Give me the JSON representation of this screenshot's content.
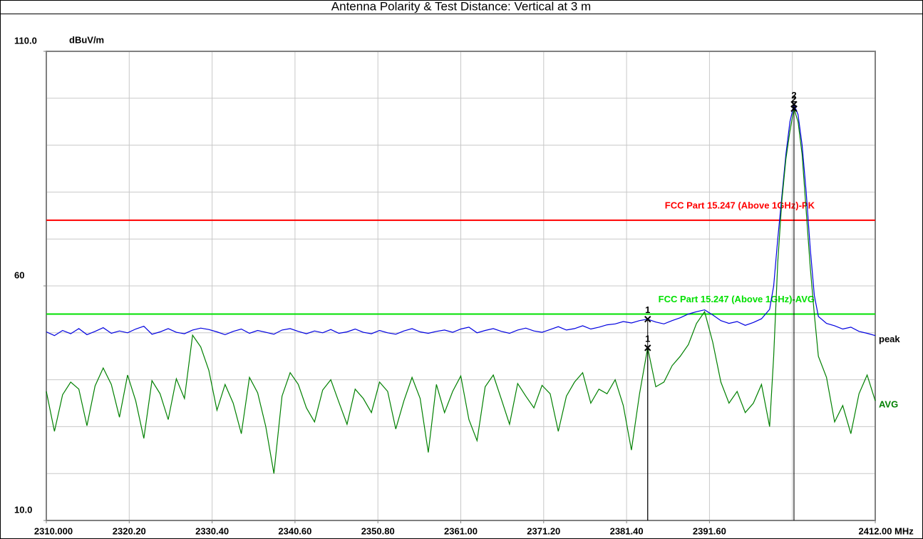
{
  "chart_data": {
    "type": "line",
    "title": "Antenna Polarity & Test Distance: Vertical at 3 m",
    "y_unit": "dBuV/m",
    "x_unit": "MHz",
    "xlim": [
      2310,
      2412
    ],
    "ylim": [
      10,
      110
    ],
    "xticks": [
      {
        "value": 2310,
        "label": "2310.000"
      },
      {
        "value": 2320.2,
        "label": "2320.20"
      },
      {
        "value": 2330.4,
        "label": "2330.40"
      },
      {
        "value": 2340.6,
        "label": "2340.60"
      },
      {
        "value": 2350.8,
        "label": "2350.80"
      },
      {
        "value": 2361,
        "label": "2361.00"
      },
      {
        "value": 2371.2,
        "label": "2371.20"
      },
      {
        "value": 2381.4,
        "label": "2381.40"
      },
      {
        "value": 2391.6,
        "label": "2391.60"
      },
      {
        "value": 2412,
        "label": "2412.00"
      }
    ],
    "xgrid": [
      2320.2,
      2330.4,
      2340.6,
      2350.8,
      2361,
      2371.2,
      2381.4,
      2391.6,
      2401.8
    ],
    "yticks": [
      {
        "value": 110,
        "label": "110.0"
      },
      60,
      {
        "value": 10,
        "label": "10.0"
      }
    ],
    "ygrid": [
      20,
      30,
      40,
      50,
      60,
      70,
      80,
      90,
      100
    ],
    "grid": true,
    "limits": [
      {
        "name": "FCC Part 15.247 (Above 1GHz)-PK",
        "color": "#ff0000",
        "value": 74
      },
      {
        "name": "FCC Part 15.247 (Above 1GHz)-AVG",
        "color": "#00e000",
        "value": 54
      }
    ],
    "x": [
      2310,
      2311,
      2312,
      2313,
      2314,
      2315,
      2316,
      2317,
      2318,
      2319,
      2320,
      2321,
      2322,
      2323,
      2324,
      2325,
      2326,
      2327,
      2328,
      2329,
      2330,
      2331,
      2332,
      2333,
      2334,
      2335,
      2336,
      2337,
      2338,
      2339,
      2340,
      2341,
      2342,
      2343,
      2344,
      2345,
      2346,
      2347,
      2348,
      2349,
      2350,
      2351,
      2352,
      2353,
      2354,
      2355,
      2356,
      2357,
      2358,
      2359,
      2360,
      2361,
      2362,
      2363,
      2364,
      2365,
      2366,
      2367,
      2368,
      2369,
      2370,
      2371,
      2372,
      2373,
      2374,
      2375,
      2376,
      2377,
      2378,
      2379,
      2380,
      2381,
      2382,
      2383,
      2384,
      2385,
      2386,
      2387,
      2388,
      2389,
      2390,
      2391,
      2392,
      2393,
      2394,
      2395,
      2396,
      2397,
      2398,
      2399,
      2399.5,
      2400,
      2400.5,
      2401,
      2401.5,
      2402,
      2402.5,
      2403,
      2403.5,
      2404,
      2404.5,
      2405,
      2406,
      2407,
      2408,
      2409,
      2410,
      2411,
      2412
    ],
    "series": [
      {
        "name": "peak",
        "color": "#0000e0",
        "values": [
          50.2,
          49.4,
          50.5,
          49.8,
          50.9,
          49.6,
          50.3,
          51.1,
          49.9,
          50.4,
          50.0,
          50.8,
          51.4,
          49.7,
          50.2,
          50.9,
          50.1,
          49.8,
          50.6,
          51.0,
          50.7,
          50.2,
          49.6,
          50.3,
          50.8,
          49.9,
          50.5,
          50.1,
          49.7,
          50.6,
          50.9,
          50.3,
          49.8,
          50.4,
          50.0,
          50.7,
          49.9,
          50.2,
          50.8,
          50.1,
          49.8,
          50.5,
          50.0,
          49.7,
          50.4,
          50.9,
          50.2,
          49.9,
          50.3,
          50.6,
          50.1,
          50.8,
          51.2,
          50.0,
          50.5,
          50.9,
          50.3,
          49.9,
          50.6,
          51.0,
          50.4,
          50.1,
          50.7,
          51.3,
          50.6,
          50.9,
          51.5,
          50.8,
          51.2,
          51.7,
          51.9,
          52.4,
          52.1,
          52.6,
          52.9,
          52.3,
          51.9,
          52.6,
          53.2,
          54.0,
          54.5,
          54.9,
          53.8,
          52.6,
          52.0,
          52.4,
          51.6,
          52.2,
          53.0,
          55.0,
          60,
          70,
          79,
          88,
          95,
          98.7,
          96.5,
          90,
          80,
          68,
          58,
          53.5,
          52.0,
          51.5,
          50.8,
          51.2,
          50.3,
          49.9,
          49.4
        ]
      },
      {
        "name": "AVG",
        "color": "#008000",
        "values": [
          37.5,
          29.0,
          36.8,
          39.5,
          38.0,
          30.2,
          38.7,
          42.5,
          39.0,
          32.0,
          41.0,
          35.5,
          27.5,
          39.8,
          37.0,
          31.5,
          40.2,
          36.0,
          49.5,
          47.0,
          42.0,
          33.5,
          39.0,
          35.0,
          28.5,
          40.5,
          37.2,
          30.0,
          20.0,
          36.5,
          41.5,
          39.0,
          34.0,
          31.0,
          37.8,
          40.0,
          35.2,
          30.5,
          38.0,
          36.0,
          33.0,
          39.5,
          37.5,
          29.5,
          35.5,
          40.5,
          36.0,
          24.5,
          39.0,
          33.0,
          37.5,
          40.8,
          31.5,
          27.0,
          38.5,
          41.0,
          35.8,
          30.5,
          39.2,
          36.5,
          34.0,
          38.8,
          37.0,
          29.0,
          36.5,
          39.5,
          41.5,
          35.0,
          38.0,
          37.0,
          40.0,
          34.5,
          25.0,
          37.0,
          46.8,
          38.5,
          39.5,
          43.0,
          45.0,
          47.5,
          52.0,
          54.5,
          48.0,
          39.5,
          35.0,
          37.5,
          33.0,
          35.0,
          39.0,
          30,
          45,
          65,
          78,
          87,
          93,
          97.8,
          95,
          88,
          76,
          64,
          54,
          45,
          40.5,
          31.0,
          34.5,
          28.5,
          37.0,
          41.0,
          35.5
        ]
      }
    ],
    "markers": [
      {
        "label": "1",
        "x": 2384,
        "y": 52.9
      },
      {
        "label": "1",
        "x": 2384,
        "y": 46.8
      },
      {
        "label": "2",
        "x": 2402,
        "y": 98.7
      },
      {
        "label": "2",
        "x": 2402,
        "y": 97.8
      }
    ]
  }
}
